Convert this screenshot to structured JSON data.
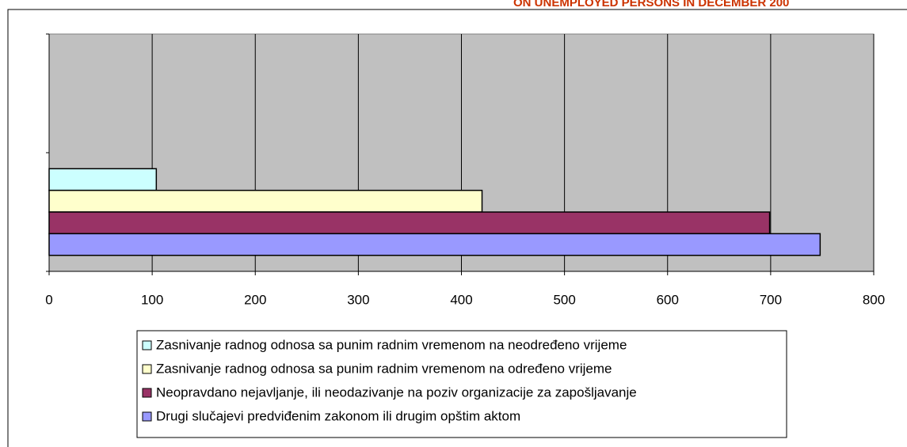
{
  "chart_data": {
    "type": "bar",
    "orientation": "horizontal",
    "title": "ON UNEMPLOYED PERSONS IN DECEMBER 200",
    "categories": [
      null,
      null
    ],
    "series": [
      {
        "name": "Zasnivanje radnog odnosa sa punim radnim vremenom na neodređeno vrijeme",
        "color": "#ccffff",
        "values": [
          104,
          null
        ]
      },
      {
        "name": "Zasnivanje radnog odnosa sa punim radnim vremenom na određeno vrijeme",
        "color": "#ffffcc",
        "values": [
          420,
          null
        ]
      },
      {
        "name": "Neopravdano nejavljanje, ili neodazivanje na poziv organizacije za zapošljavanje",
        "color": "#993366",
        "values": [
          699,
          null
        ]
      },
      {
        "name": "Drugi slučajevi predviđenim zakonom ili drugim opštim aktom",
        "color": "#9999ff",
        "values": [
          748,
          null
        ]
      }
    ],
    "xlim": [
      0,
      800
    ],
    "xticks": [
      0,
      100,
      200,
      300,
      400,
      500,
      600,
      700,
      800
    ],
    "grid": true,
    "legend": "bottom"
  }
}
